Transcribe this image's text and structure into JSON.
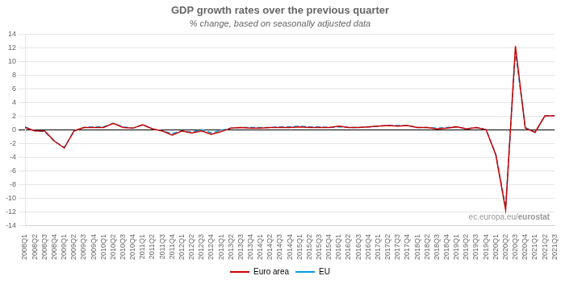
{
  "chart_data": {
    "type": "line",
    "title": "GDP growth rates over the previous quarter",
    "subtitle": "% change, based on seasonally adjusted data",
    "annotations": [
      "ec.europa.eu/",
      "eurostat"
    ],
    "categories": [
      "2008Q1",
      "2008Q2",
      "2008Q3",
      "2008Q4",
      "2009Q1",
      "2009Q2",
      "2009Q3",
      "2009Q4",
      "2010Q1",
      "2010Q2",
      "2010Q3",
      "2010Q4",
      "2011Q1",
      "2011Q2",
      "2011Q3",
      "2011Q4",
      "2012Q1",
      "2012Q2",
      "2012Q3",
      "2012Q4",
      "2013Q1",
      "2013Q2",
      "2013Q3",
      "2013Q4",
      "2014Q1",
      "2014Q2",
      "2014Q3",
      "2014Q4",
      "2015Q1",
      "2015Q2",
      "2015Q3",
      "2015Q4",
      "2016Q1",
      "2016Q2",
      "2016Q3",
      "2016Q4",
      "2017Q1",
      "2017Q2",
      "2017Q3",
      "2017Q4",
      "2018Q1",
      "2018Q2",
      "2018Q3",
      "2018Q4",
      "2019Q1",
      "2019Q2",
      "2019Q3",
      "2019Q4",
      "2020Q1",
      "2020Q2",
      "2020Q3",
      "2020Q4",
      "2021Q1",
      "2021Q2",
      "2021Q3"
    ],
    "series": [
      {
        "name": "Euro area",
        "color": "#cc0000",
        "line_style": "solid",
        "values": [
          0.4,
          -0.1,
          -0.1,
          -1.6,
          -2.6,
          -0.1,
          0.4,
          0.4,
          0.4,
          1.0,
          0.4,
          0.3,
          0.8,
          0.2,
          -0.1,
          -0.7,
          -0.1,
          -0.4,
          -0.1,
          -0.6,
          -0.2,
          0.3,
          0.4,
          0.3,
          0.3,
          0.4,
          0.4,
          0.4,
          0.5,
          0.4,
          0.4,
          0.4,
          0.6,
          0.4,
          0.4,
          0.5,
          0.6,
          0.7,
          0.6,
          0.7,
          0.4,
          0.4,
          0.2,
          0.3,
          0.5,
          0.2,
          0.4,
          0.1,
          -3.6,
          -11.6,
          12.3,
          0.3,
          -0.3,
          2.1,
          2.1
        ]
      },
      {
        "name": "EU",
        "color": "#009de0",
        "line_style": "dashed",
        "values": [
          0.5,
          -0.1,
          -0.2,
          -1.6,
          -2.5,
          -0.1,
          0.4,
          0.5,
          0.5,
          1.0,
          0.5,
          0.3,
          0.8,
          0.2,
          -0.1,
          -0.5,
          -0.1,
          -0.3,
          0.1,
          -0.4,
          0.0,
          0.3,
          0.4,
          0.4,
          0.4,
          0.4,
          0.5,
          0.5,
          0.6,
          0.5,
          0.5,
          0.4,
          0.5,
          0.4,
          0.4,
          0.5,
          0.6,
          0.7,
          0.7,
          0.7,
          0.4,
          0.4,
          0.3,
          0.4,
          0.5,
          0.2,
          0.4,
          0.1,
          -3.5,
          -11.3,
          11.5,
          0.4,
          -0.3,
          2.1,
          2.1
        ]
      }
    ],
    "ylim": [
      -14,
      14
    ],
    "yticks": [
      -14,
      -12,
      -10,
      -8,
      -6,
      -4,
      -2,
      0,
      2,
      4,
      6,
      8,
      10,
      12,
      14
    ],
    "grid": true,
    "legend": "bottom"
  }
}
